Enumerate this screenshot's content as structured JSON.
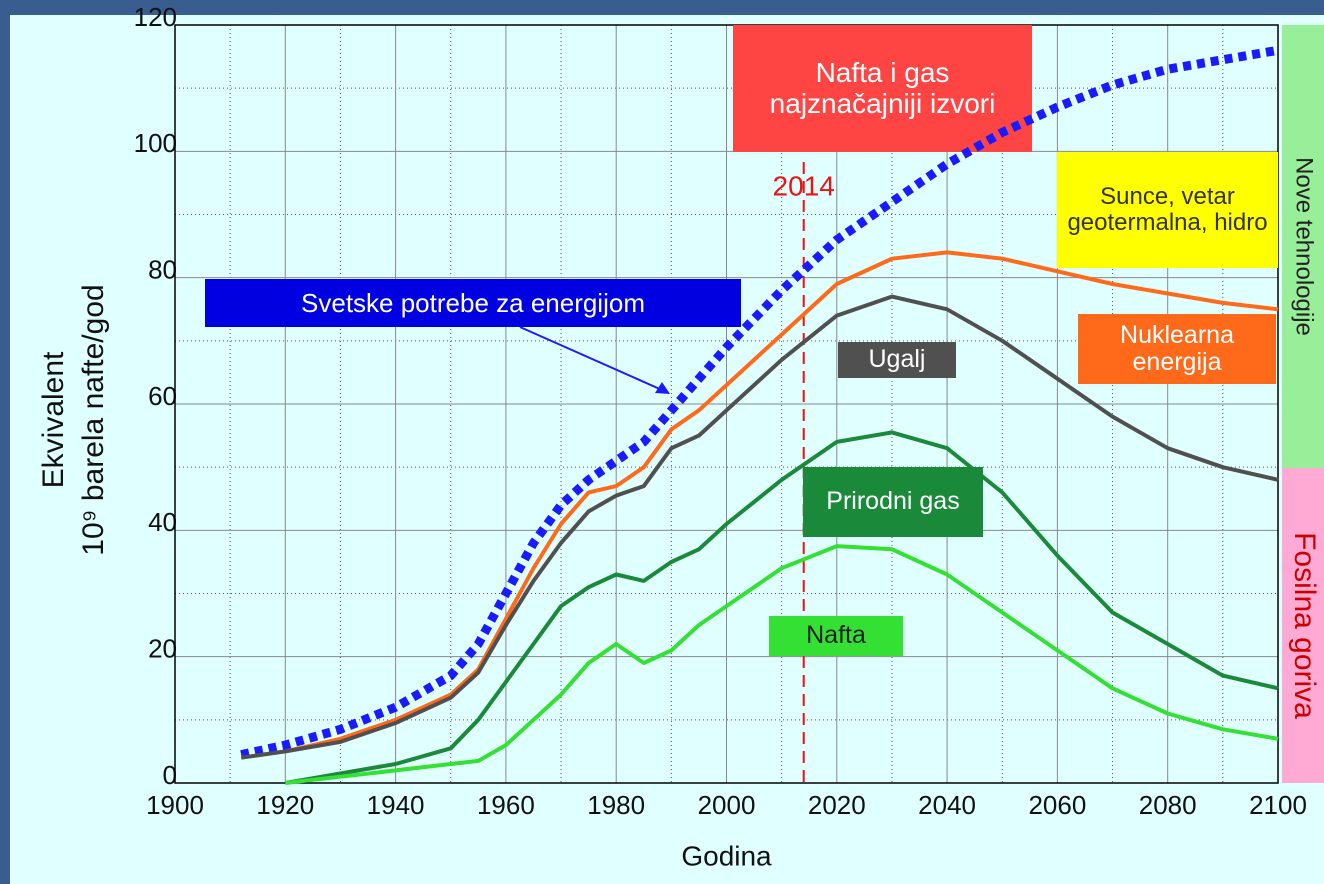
{
  "chart_data": {
    "type": "line",
    "xlabel": "Godina",
    "ylabel": [
      "Ekvivalent",
      "10⁹ barela nafte/god"
    ],
    "x": [
      1912,
      1920,
      1930,
      1940,
      1950,
      1955,
      1960,
      1965,
      1970,
      1975,
      1980,
      1985,
      1990,
      1995,
      2000,
      2010,
      2020,
      2030,
      2040,
      2050,
      2060,
      2070,
      2080,
      2090,
      2100
    ],
    "series": [
      {
        "name": "Svetske potrebe za energijom",
        "color": "#1a1aff",
        "dotted": true,
        "values": [
          4.5,
          6,
          8.5,
          12,
          17,
          22,
          30,
          38,
          44,
          48,
          51,
          54,
          59,
          64,
          69,
          78,
          86,
          92,
          98,
          103,
          107,
          110.5,
          113,
          114.5,
          116
        ]
      },
      {
        "name": "Nuklearna energija",
        "color": "#ff6a1a",
        "values": [
          null,
          5,
          7,
          10,
          14,
          18,
          26,
          34,
          41,
          46,
          47,
          50,
          56,
          59,
          63,
          71,
          79,
          83,
          84,
          83,
          81,
          79,
          77.5,
          76,
          75
        ]
      },
      {
        "name": "Ugalj",
        "color": "#505050",
        "values": [
          4,
          5,
          6.5,
          9.5,
          13.5,
          17.5,
          25,
          32,
          38,
          43,
          45.5,
          47,
          53,
          55,
          59,
          67,
          74,
          77,
          75,
          70,
          64,
          58,
          53,
          50,
          48
        ]
      },
      {
        "name": "Prirodni gas",
        "color": "#1a8a3a",
        "values": [
          null,
          0,
          1.5,
          3,
          5.5,
          10,
          16,
          22,
          28,
          31,
          33,
          32,
          35,
          37,
          41,
          48,
          54,
          55.5,
          53,
          46,
          36,
          27,
          22,
          17,
          15
        ]
      },
      {
        "name": "Nafta",
        "color": "#33e033",
        "values": [
          null,
          0,
          1,
          2,
          3,
          3.5,
          6,
          10,
          14,
          19,
          22,
          19,
          21,
          25,
          28,
          34,
          37.5,
          37,
          33,
          27,
          21,
          15,
          11,
          8.5,
          7
        ]
      }
    ],
    "xlim": [
      1900,
      2100
    ],
    "xticks": [
      1900,
      1920,
      1940,
      1960,
      1980,
      2000,
      2020,
      2040,
      2060,
      2080,
      2100
    ],
    "ylim": [
      0,
      120
    ],
    "yticks": [
      0,
      20,
      40,
      60,
      80,
      100,
      120
    ],
    "grid": true,
    "marker": {
      "x": 2014,
      "label": "2014",
      "color": "#ee1111"
    },
    "annotations": [
      {
        "text": "Nafta i gas najznačajniji izvori",
        "color": "#ff4444"
      },
      {
        "text": "Sunce, vetar geotermalna, hidro",
        "color": "#ffff00"
      }
    ],
    "bands": [
      {
        "text": "Nove tehnologije",
        "color": "#99ee99"
      },
      {
        "text": "Fosilna goriva",
        "color": "#ffaad4"
      }
    ]
  }
}
